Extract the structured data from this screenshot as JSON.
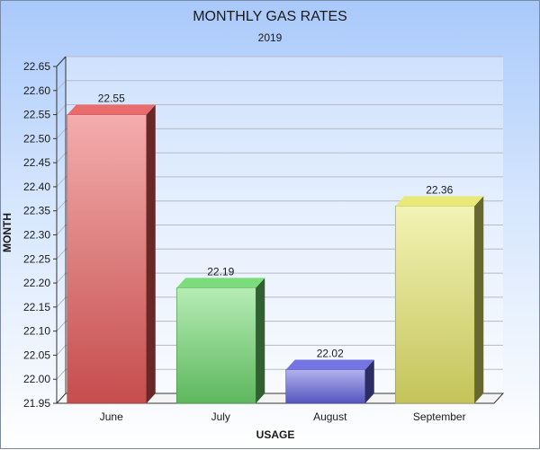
{
  "chart_data": {
    "type": "bar",
    "title": "MONTHLY GAS RATES",
    "subtitle": "2019",
    "xlabel": "USAGE",
    "ylabel": "MONTH",
    "categories": [
      "June",
      "July",
      "August",
      "September"
    ],
    "values": [
      22.55,
      22.19,
      22.02,
      22.36
    ],
    "data_labels": [
      "22.55",
      "22.19",
      "22.02",
      "22.36"
    ],
    "ylim": [
      21.95,
      22.65
    ],
    "yticks": [
      "21.95",
      "22.00",
      "22.05",
      "22.10",
      "22.15",
      "22.20",
      "22.25",
      "22.30",
      "22.35",
      "22.40",
      "22.45",
      "22.50",
      "22.55",
      "22.60",
      "22.65"
    ],
    "grid": true,
    "legend": "none",
    "colors": [
      "#e85a5a",
      "#6dd86d",
      "#6464e0",
      "#e6e66a"
    ]
  }
}
